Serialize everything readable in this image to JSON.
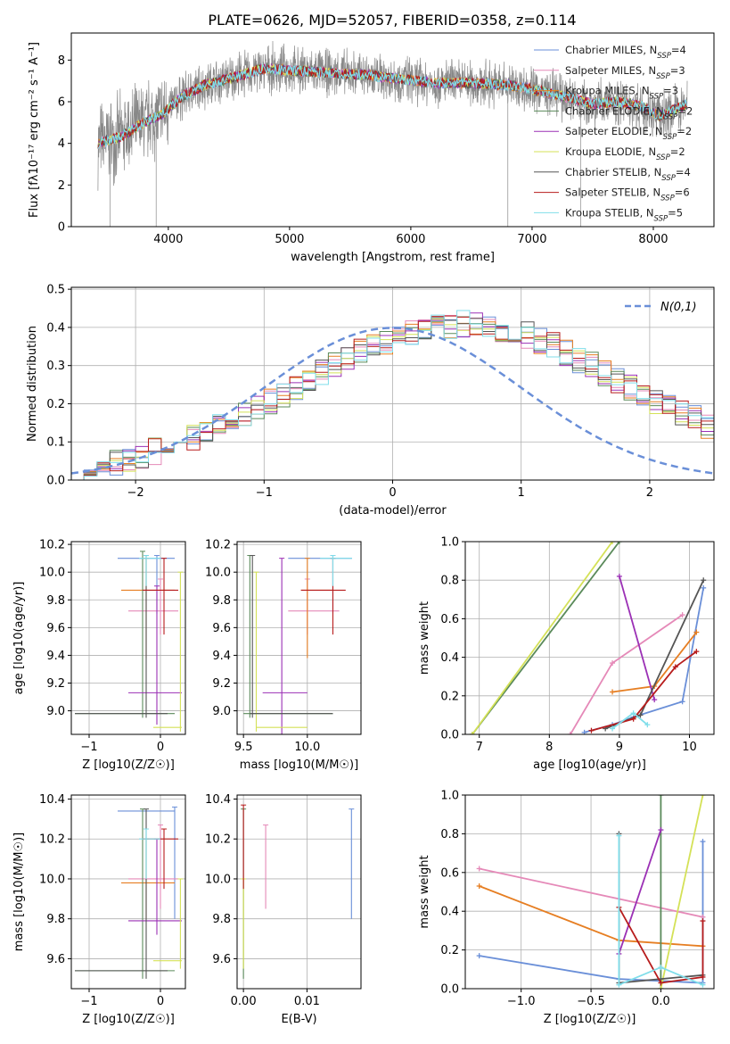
{
  "title": "PLATE=0626, MJD=52057, FIBERID=0358, z=0.114",
  "series": [
    {
      "name": "Chabrier MILES, N",
      "sub": "SSP",
      "suffix": "=4",
      "color": "#6a8fd8"
    },
    {
      "name": "Salpeter MILES, N",
      "sub": "SSP",
      "suffix": "=3",
      "color": "#e589b8"
    },
    {
      "name": "Kroupa MILES, N",
      "sub": "SSP",
      "suffix": "=3",
      "color": "#e67e22"
    },
    {
      "name": "Chabrier ELODIE, N",
      "sub": "SSP",
      "suffix": "=2",
      "color": "#5a8a5a"
    },
    {
      "name": "Salpeter ELODIE, N",
      "sub": "SSP",
      "suffix": "=2",
      "color": "#9b30b5"
    },
    {
      "name": "Kroupa ELODIE, N",
      "sub": "SSP",
      "suffix": "=2",
      "color": "#d4e157"
    },
    {
      "name": "Chabrier STELIB, N",
      "sub": "SSP",
      "suffix": "=4",
      "color": "#555555"
    },
    {
      "name": "Salpeter STELIB, N",
      "sub": "SSP",
      "suffix": "=6",
      "color": "#b71c1c"
    },
    {
      "name": "Kroupa STELIB, N",
      "sub": "SSP",
      "suffix": "=5",
      "color": "#80deea"
    }
  ],
  "chart_data": [
    {
      "id": "spectrum",
      "type": "line",
      "xlabel": "wavelength [Angstrom, rest frame]",
      "ylabel": "Flux [fλ10⁻¹⁷ erg cm⁻² s⁻¹ A⁻¹]",
      "xlim": [
        3200,
        8500
      ],
      "ylim": [
        0,
        9.3
      ],
      "xticks": [
        "4000",
        "5000",
        "6000",
        "7000",
        "8000"
      ],
      "xtickv": [
        4000,
        5000,
        6000,
        7000,
        8000
      ],
      "yticks": [
        "0",
        "2",
        "4",
        "6",
        "8"
      ],
      "ytickv": [
        0,
        2,
        4,
        6,
        8
      ],
      "continuum": [
        [
          3420,
          4.0
        ],
        [
          3600,
          4.3
        ],
        [
          3800,
          5.0
        ],
        [
          3950,
          5.4
        ],
        [
          4100,
          6.2
        ],
        [
          4300,
          6.8
        ],
        [
          4500,
          7.1
        ],
        [
          4800,
          7.6
        ],
        [
          5000,
          7.5
        ],
        [
          5300,
          7.4
        ],
        [
          5600,
          7.3
        ],
        [
          5900,
          7.1
        ],
        [
          6200,
          6.9
        ],
        [
          6500,
          6.9
        ],
        [
          6800,
          6.8
        ],
        [
          7000,
          6.6
        ],
        [
          7300,
          6.2
        ],
        [
          7500,
          5.9
        ],
        [
          7700,
          6.0
        ],
        [
          7900,
          5.8
        ],
        [
          8050,
          5.3
        ],
        [
          8280,
          5.9
        ]
      ]
    },
    {
      "id": "residuals",
      "type": "bar",
      "xlabel": "(data-model)/error",
      "ylabel": "Normed distribution",
      "xlim": [
        -2.5,
        2.5
      ],
      "ylim": [
        0,
        0.505
      ],
      "xticks": [
        "−2",
        "−1",
        "0",
        "1",
        "2"
      ],
      "xtickv": [
        -2,
        -1,
        0,
        1,
        2
      ],
      "yticks": [
        "0.0",
        "0.1",
        "0.2",
        "0.3",
        "0.4",
        "0.5"
      ],
      "ytickv": [
        0,
        0.1,
        0.2,
        0.3,
        0.4,
        0.5
      ],
      "legend": "N(0,1)",
      "bin_edges_start": -2.5,
      "bin_width": 0.1,
      "hist": [
        0.025,
        0.03,
        0.035,
        0.045,
        0.055,
        0.065,
        0.075,
        0.085,
        0.1,
        0.11,
        0.125,
        0.14,
        0.16,
        0.175,
        0.19,
        0.205,
        0.22,
        0.24,
        0.26,
        0.28,
        0.3,
        0.315,
        0.335,
        0.355,
        0.365,
        0.38,
        0.39,
        0.395,
        0.4,
        0.405,
        0.41,
        0.405,
        0.4,
        0.395,
        0.39,
        0.38,
        0.365,
        0.355,
        0.335,
        0.315,
        0.3,
        0.28,
        0.26,
        0.24,
        0.22,
        0.205,
        0.19,
        0.175,
        0.16,
        0.14
      ]
    },
    {
      "id": "age-vs-Z",
      "type": "scatter",
      "xlabel": "Z [log10(Z/Z☉)]",
      "ylabel": "age [log10(age/yr)]",
      "xlim": [
        -1.25,
        0.35
      ],
      "ylim": [
        8.83,
        10.22
      ],
      "xticks": [
        "−1",
        "0"
      ],
      "xtickv": [
        -1,
        0
      ],
      "yticks": [
        "9.0",
        "9.2",
        "9.4",
        "9.6",
        "9.8",
        "10.0",
        "10.2"
      ],
      "ytickv": [
        9.0,
        9.2,
        9.4,
        9.6,
        9.8,
        10.0,
        10.2
      ],
      "points": [
        {
          "s": 0,
          "x": -0.05,
          "xe": [
            -0.6,
            0.2
          ],
          "y": 10.1,
          "ye": [
            9.7,
            10.12
          ]
        },
        {
          "s": 1,
          "x": 0.0,
          "xe": [
            -0.45,
            0.25
          ],
          "y": 9.72,
          "ye": [
            9.55,
            9.95
          ]
        },
        {
          "s": 2,
          "x": -0.2,
          "xe": [
            -0.55,
            0.2
          ],
          "y": 9.87,
          "ye": [
            9.38,
            10.1
          ]
        },
        {
          "s": 3,
          "x": -0.25,
          "xe": [
            -1.2,
            0.2
          ],
          "y": 8.98,
          "ye": [
            8.95,
            10.15
          ]
        },
        {
          "s": 4,
          "x": -0.05,
          "xe": [
            -0.45,
            0.3
          ],
          "y": 9.13,
          "ye": [
            8.9,
            9.9
          ]
        },
        {
          "s": 5,
          "x": 0.28,
          "xe": [
            -0.1,
            0.3
          ],
          "y": 8.88,
          "ye": [
            8.85,
            10.0
          ]
        },
        {
          "s": 6,
          "x": -0.2,
          "xe": [
            -1.2,
            0.1
          ],
          "y": 8.98,
          "ye": [
            8.95,
            10.12
          ]
        },
        {
          "s": 7,
          "x": 0.05,
          "xe": [
            -0.25,
            0.25
          ],
          "y": 9.87,
          "ye": [
            9.55,
            10.1
          ]
        },
        {
          "s": 8,
          "x": -0.2,
          "xe": [
            -0.3,
            0.0
          ],
          "y": 10.1,
          "ye": [
            9.9,
            10.12
          ]
        }
      ]
    },
    {
      "id": "age-vs-mass",
      "type": "scatter",
      "xlabel": "mass [log10(M/M☉)]",
      "ylabel": "",
      "xlim": [
        9.45,
        10.42
      ],
      "ylim": [
        8.83,
        10.22
      ],
      "xticks": [
        "9.5",
        "10.0"
      ],
      "xtickv": [
        9.5,
        10.0
      ],
      "yticks": [
        "9.0",
        "9.2",
        "9.4",
        "9.6",
        "9.8",
        "10.0",
        "10.2"
      ],
      "ytickv": [
        9.0,
        9.2,
        9.4,
        9.6,
        9.8,
        10.0,
        10.2
      ],
      "points": [
        {
          "s": 0,
          "x": 10.2,
          "xe": [
            9.85,
            10.35
          ],
          "y": 10.1,
          "ye": [
            9.7,
            10.12
          ]
        },
        {
          "s": 1,
          "x": 10.0,
          "xe": [
            9.85,
            10.25
          ],
          "y": 9.72,
          "ye": [
            9.55,
            9.95
          ]
        },
        {
          "s": 2,
          "x": 10.0,
          "xe": [
            9.95,
            10.2
          ],
          "y": 9.87,
          "ye": [
            9.38,
            10.1
          ]
        },
        {
          "s": 3,
          "x": 9.55,
          "xe": [
            9.5,
            10.2
          ],
          "y": 8.98,
          "ye": [
            8.95,
            10.12
          ]
        },
        {
          "s": 4,
          "x": 9.8,
          "xe": [
            9.65,
            10.0
          ],
          "y": 9.13,
          "ye": [
            8.82,
            10.1
          ]
        },
        {
          "s": 5,
          "x": 9.6,
          "xe": [
            9.6,
            10.0
          ],
          "y": 8.88,
          "ye": [
            8.85,
            10.0
          ]
        },
        {
          "s": 6,
          "x": 9.57,
          "xe": [
            9.55,
            10.2
          ],
          "y": 8.98,
          "ye": [
            8.95,
            10.12
          ]
        },
        {
          "s": 7,
          "x": 10.2,
          "xe": [
            9.95,
            10.3
          ],
          "y": 9.87,
          "ye": [
            9.55,
            10.1
          ]
        },
        {
          "s": 8,
          "x": 10.2,
          "xe": [
            10.1,
            10.35
          ],
          "y": 10.1,
          "ye": [
            9.9,
            10.12
          ]
        }
      ]
    },
    {
      "id": "massweight-vs-age",
      "type": "line",
      "xlabel": "age [log10(age/yr)]",
      "ylabel": "mass weight",
      "xlim": [
        6.8,
        10.35
      ],
      "ylim": [
        0,
        1
      ],
      "xticks": [
        "7",
        "8",
        "9",
        "10"
      ],
      "xtickv": [
        7,
        8,
        9,
        10
      ],
      "yticks": [
        "0.0",
        "0.2",
        "0.4",
        "0.6",
        "0.8",
        "1.0"
      ],
      "ytickv": [
        0,
        0.2,
        0.4,
        0.6,
        0.8,
        1.0
      ],
      "lines": [
        {
          "s": 0,
          "pts": [
            [
              8.5,
              0.01
            ],
            [
              8.9,
              0.05
            ],
            [
              9.2,
              0.09
            ],
            [
              9.9,
              0.17
            ],
            [
              10.2,
              0.76
            ]
          ]
        },
        {
          "s": 1,
          "pts": [
            [
              8.3,
              0.0
            ],
            [
              8.9,
              0.37
            ],
            [
              9.9,
              0.62
            ]
          ]
        },
        {
          "s": 2,
          "pts": [
            [
              8.9,
              0.22
            ],
            [
              9.5,
              0.25
            ],
            [
              10.1,
              0.53
            ]
          ]
        },
        {
          "s": 3,
          "pts": [
            [
              6.9,
              0.0
            ],
            [
              9.0,
              1.0
            ]
          ]
        },
        {
          "s": 4,
          "pts": [
            [
              9.0,
              0.82
            ],
            [
              9.5,
              0.18
            ]
          ]
        },
        {
          "s": 5,
          "pts": [
            [
              6.9,
              0.0
            ],
            [
              8.9,
              1.0
            ]
          ]
        },
        {
          "s": 6,
          "pts": [
            [
              8.8,
              0.03
            ],
            [
              9.3,
              0.1
            ],
            [
              10.2,
              0.8
            ]
          ]
        },
        {
          "s": 7,
          "pts": [
            [
              8.6,
              0.02
            ],
            [
              9.2,
              0.08
            ],
            [
              9.8,
              0.35
            ],
            [
              10.1,
              0.43
            ]
          ]
        },
        {
          "s": 8,
          "pts": [
            [
              8.9,
              0.03
            ],
            [
              9.2,
              0.11
            ],
            [
              9.4,
              0.05
            ]
          ]
        }
      ]
    },
    {
      "id": "mass-vs-Z",
      "type": "scatter",
      "xlabel": "Z [log10(Z/Z☉)]",
      "ylabel": "mass [log10(M/M☉)]",
      "xlim": [
        -1.25,
        0.35
      ],
      "ylim": [
        9.45,
        10.42
      ],
      "xticks": [
        "−1",
        "0"
      ],
      "xtickv": [
        -1,
        0
      ],
      "yticks": [
        "9.6",
        "9.8",
        "10.0",
        "10.2",
        "10.4"
      ],
      "ytickv": [
        9.6,
        9.8,
        10.0,
        10.2,
        10.4
      ],
      "points": [
        {
          "s": 0,
          "x": 0.2,
          "xe": [
            -0.6,
            0.2
          ],
          "y": 10.34,
          "ye": [
            9.8,
            10.36
          ]
        },
        {
          "s": 1,
          "x": 0.0,
          "xe": [
            -0.45,
            0.25
          ],
          "y": 10.0,
          "ye": [
            9.85,
            10.27
          ]
        },
        {
          "s": 2,
          "x": -0.2,
          "xe": [
            -0.55,
            0.2
          ],
          "y": 9.98,
          "ye": [
            9.8,
            10.2
          ]
        },
        {
          "s": 3,
          "x": -0.25,
          "xe": [
            -1.2,
            0.2
          ],
          "y": 9.54,
          "ye": [
            9.5,
            10.35
          ]
        },
        {
          "s": 4,
          "x": -0.05,
          "xe": [
            -0.45,
            0.3
          ],
          "y": 9.79,
          "ye": [
            9.72,
            10.2
          ]
        },
        {
          "s": 5,
          "x": 0.28,
          "xe": [
            -0.1,
            0.3
          ],
          "y": 9.59,
          "ye": [
            9.55,
            10.0
          ]
        },
        {
          "s": 6,
          "x": -0.2,
          "xe": [
            -1.2,
            0.1
          ],
          "y": 9.54,
          "ye": [
            9.5,
            10.35
          ]
        },
        {
          "s": 7,
          "x": 0.05,
          "xe": [
            -0.25,
            0.25
          ],
          "y": 10.2,
          "ye": [
            9.95,
            10.25
          ]
        },
        {
          "s": 8,
          "x": -0.2,
          "xe": [
            -0.3,
            0.0
          ],
          "y": 10.2,
          "ye": [
            10.0,
            10.25
          ]
        }
      ]
    },
    {
      "id": "mass-vs-EBV",
      "type": "scatter",
      "xlabel": "E(B-V)",
      "ylabel": "",
      "xlim": [
        -0.001,
        0.0185
      ],
      "ylim": [
        9.45,
        10.42
      ],
      "xticks": [
        "0.00",
        "0.01"
      ],
      "xtickv": [
        0,
        0.01
      ],
      "yticks": [
        "9.6",
        "9.8",
        "10.0",
        "10.2",
        "10.4"
      ],
      "ytickv": [
        9.6,
        9.8,
        10.0,
        10.2,
        10.4
      ],
      "points": [
        {
          "s": 0,
          "x": 0.017,
          "y": 10.3,
          "ye": [
            9.8,
            10.35
          ]
        },
        {
          "s": 1,
          "x": 0.0035,
          "y": 10.1,
          "ye": [
            9.85,
            10.27
          ]
        },
        {
          "s": 3,
          "x": 0.0,
          "y": 9.9,
          "ye": [
            9.5,
            10.35
          ]
        },
        {
          "s": 5,
          "x": 0.0,
          "y": 9.7,
          "ye": [
            9.55,
            10.0
          ]
        },
        {
          "s": 7,
          "x": 0.0,
          "y": 10.0,
          "ye": [
            9.95,
            10.37
          ]
        }
      ]
    },
    {
      "id": "massweight-vs-Z",
      "type": "line",
      "xlabel": "Z [log10(Z/Z☉)]",
      "ylabel": "mass weight",
      "xlim": [
        -1.4,
        0.38
      ],
      "ylim": [
        0,
        1
      ],
      "xticks": [
        "−1.0",
        "−0.5",
        "0.0"
      ],
      "xtickv": [
        -1.0,
        -0.5,
        0.0
      ],
      "yticks": [
        "0.0",
        "0.2",
        "0.4",
        "0.6",
        "0.8",
        "1.0"
      ],
      "ytickv": [
        0,
        0.2,
        0.4,
        0.6,
        0.8,
        1.0
      ],
      "lines": [
        {
          "s": 0,
          "pts": [
            [
              -1.3,
              0.17
            ],
            [
              -0.3,
              0.05
            ],
            [
              0.3,
              0.03
            ],
            [
              0.3,
              0.76
            ]
          ]
        },
        {
          "s": 1,
          "pts": [
            [
              -1.3,
              0.62
            ],
            [
              0.3,
              0.37
            ]
          ]
        },
        {
          "s": 2,
          "pts": [
            [
              -1.3,
              0.53
            ],
            [
              -0.3,
              0.25
            ],
            [
              0.3,
              0.22
            ]
          ]
        },
        {
          "s": 3,
          "pts": [
            [
              0.0,
              0.0
            ],
            [
              0.0,
              1.0
            ]
          ]
        },
        {
          "s": 4,
          "pts": [
            [
              -0.3,
              0.18
            ],
            [
              0.0,
              0.82
            ]
          ]
        },
        {
          "s": 5,
          "pts": [
            [
              0.0,
              0.0
            ],
            [
              0.3,
              1.0
            ]
          ]
        },
        {
          "s": 6,
          "pts": [
            [
              -0.3,
              0.8
            ],
            [
              -0.3,
              0.03
            ],
            [
              0.3,
              0.07
            ]
          ]
        },
        {
          "s": 7,
          "pts": [
            [
              -0.3,
              0.42
            ],
            [
              0.0,
              0.03
            ],
            [
              0.3,
              0.06
            ],
            [
              0.3,
              0.35
            ]
          ]
        },
        {
          "s": 8,
          "pts": [
            [
              -0.3,
              0.79
            ],
            [
              -0.3,
              0.02
            ],
            [
              0.0,
              0.11
            ],
            [
              0.3,
              0.02
            ]
          ]
        }
      ]
    }
  ]
}
